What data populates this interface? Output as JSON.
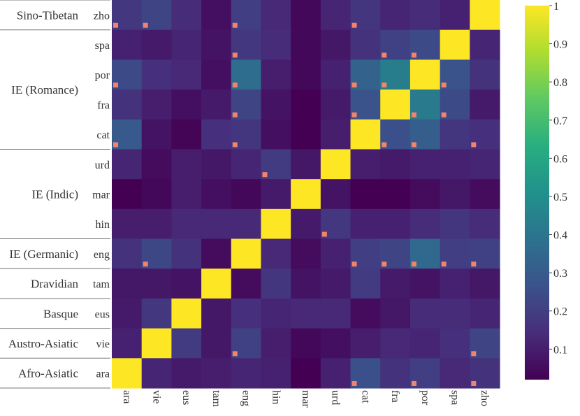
{
  "chart_data": {
    "type": "heatmap",
    "title": "",
    "xlabel": "",
    "ylabel": "",
    "x_categories": [
      "ara",
      "vie",
      "eus",
      "tam",
      "eng",
      "hin",
      "mar",
      "urd",
      "cat",
      "fra",
      "por",
      "spa",
      "zho"
    ],
    "y_categories": [
      "zho",
      "spa",
      "por",
      "fra",
      "cat",
      "urd",
      "mar",
      "hin",
      "eng",
      "tam",
      "eus",
      "vie",
      "ara"
    ],
    "groups": [
      {
        "name": "Sino-Tibetan",
        "rows": [
          "zho"
        ]
      },
      {
        "name": "IE (Romance)",
        "rows": [
          "spa",
          "por",
          "fra",
          "cat"
        ]
      },
      {
        "name": "IE (Indic)",
        "rows": [
          "urd",
          "mar",
          "hin"
        ]
      },
      {
        "name": "IE (Germanic)",
        "rows": [
          "eng"
        ]
      },
      {
        "name": "Dravidian",
        "rows": [
          "tam"
        ]
      },
      {
        "name": "Basque",
        "rows": [
          "eus"
        ]
      },
      {
        "name": "Austro-Asiatic",
        "rows": [
          "vie"
        ]
      },
      {
        "name": "Afro-Asiatic",
        "rows": [
          "ara"
        ]
      }
    ],
    "values": [
      [
        0.18,
        0.22,
        0.14,
        0.06,
        0.2,
        0.13,
        0.04,
        0.12,
        0.17,
        0.12,
        0.14,
        0.11,
        1.0
      ],
      [
        0.11,
        0.09,
        0.12,
        0.07,
        0.18,
        0.14,
        0.04,
        0.08,
        0.16,
        0.21,
        0.24,
        1.0,
        0.12
      ],
      [
        0.24,
        0.15,
        0.13,
        0.06,
        0.37,
        0.1,
        0.04,
        0.11,
        0.33,
        0.43,
        1.0,
        0.27,
        0.16
      ],
      [
        0.16,
        0.1,
        0.06,
        0.09,
        0.22,
        0.07,
        0.01,
        0.09,
        0.27,
        1.0,
        0.42,
        0.24,
        0.09
      ],
      [
        0.29,
        0.07,
        0.03,
        0.15,
        0.17,
        0.06,
        0.02,
        0.1,
        1.0,
        0.26,
        0.31,
        0.17,
        0.15
      ],
      [
        0.12,
        0.05,
        0.1,
        0.08,
        0.12,
        0.19,
        0.08,
        1.0,
        0.1,
        0.09,
        0.11,
        0.11,
        0.12
      ],
      [
        0.02,
        0.04,
        0.1,
        0.06,
        0.04,
        0.09,
        1.0,
        0.07,
        0.02,
        0.02,
        0.05,
        0.08,
        0.05
      ],
      [
        0.1,
        0.1,
        0.13,
        0.13,
        0.13,
        1.0,
        0.09,
        0.18,
        0.11,
        0.11,
        0.14,
        0.17,
        0.14
      ],
      [
        0.16,
        0.23,
        0.16,
        0.05,
        1.0,
        0.13,
        0.05,
        0.11,
        0.2,
        0.22,
        0.35,
        0.2,
        0.21
      ],
      [
        0.08,
        0.08,
        0.07,
        1.0,
        0.05,
        0.17,
        0.07,
        0.09,
        0.19,
        0.09,
        0.07,
        0.11,
        0.08
      ],
      [
        0.09,
        0.18,
        1.0,
        0.08,
        0.15,
        0.12,
        0.13,
        0.13,
        0.05,
        0.08,
        0.14,
        0.14,
        0.12
      ],
      [
        0.11,
        1.0,
        0.19,
        0.08,
        0.21,
        0.1,
        0.04,
        0.06,
        0.1,
        0.13,
        0.12,
        0.15,
        0.22
      ],
      [
        1.0,
        0.12,
        0.09,
        0.1,
        0.12,
        0.11,
        0.02,
        0.11,
        0.26,
        0.16,
        0.2,
        0.13,
        0.16
      ]
    ],
    "markers": [
      [
        0,
        0
      ],
      [
        0,
        1
      ],
      [
        0,
        4
      ],
      [
        0,
        8
      ],
      [
        1,
        4
      ],
      [
        1,
        9
      ],
      [
        1,
        10
      ],
      [
        2,
        0
      ],
      [
        2,
        4
      ],
      [
        2,
        8
      ],
      [
        2,
        9
      ],
      [
        2,
        11
      ],
      [
        3,
        4
      ],
      [
        3,
        8
      ],
      [
        3,
        10
      ],
      [
        3,
        11
      ],
      [
        4,
        0
      ],
      [
        4,
        4
      ],
      [
        4,
        9
      ],
      [
        4,
        10
      ],
      [
        4,
        12
      ],
      [
        5,
        5
      ],
      [
        7,
        7
      ],
      [
        8,
        1
      ],
      [
        8,
        8
      ],
      [
        8,
        9
      ],
      [
        8,
        10
      ],
      [
        8,
        11
      ],
      [
        8,
        12
      ],
      [
        11,
        4
      ],
      [
        11,
        12
      ],
      [
        12,
        8
      ],
      [
        12,
        10
      ],
      [
        12,
        12
      ]
    ],
    "marker_color": "#f4836b",
    "colorscale": "viridis",
    "colorbar": {
      "range": [
        0.02,
        1
      ],
      "ticks": [
        0.1,
        0.2,
        0.3,
        0.4,
        0.5,
        0.6,
        0.7,
        0.8,
        0.9,
        1
      ],
      "tick_labels": [
        "0.1",
        "0.2",
        "0.3",
        "0.4",
        "0.5",
        "0.6",
        "0.7",
        "0.8",
        "0.9",
        "1"
      ]
    }
  }
}
